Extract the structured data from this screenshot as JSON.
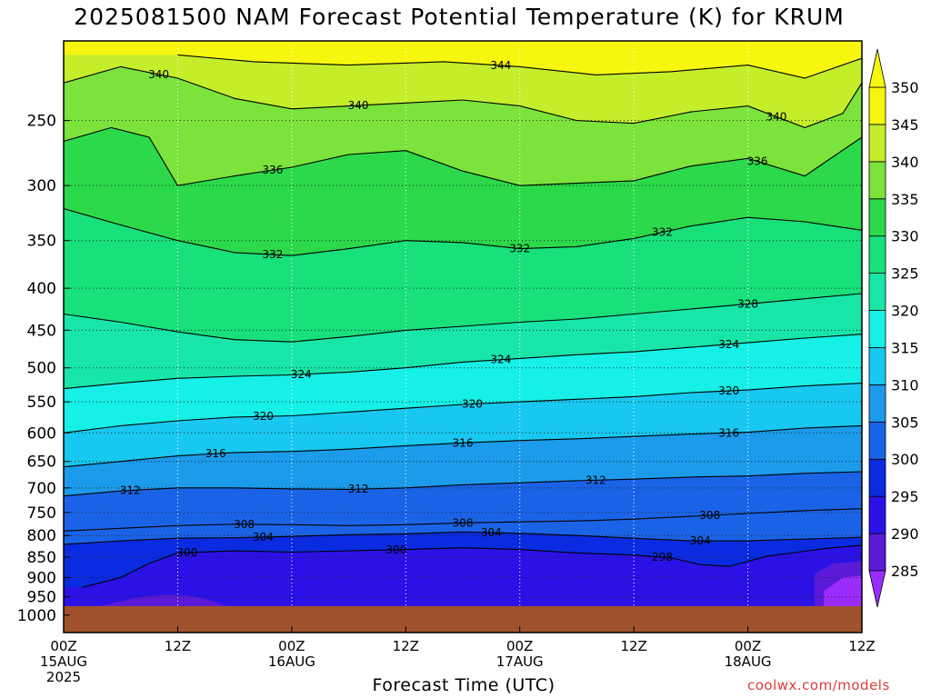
{
  "title": "2025081500 NAM Forecast Potential Temperature (K) for KRUM",
  "xlabel": "Forecast Time (UTC)",
  "credit": "coolwx.com/models",
  "colors": {
    "ground": "#a0522d",
    "bands": [
      "#9b2cff",
      "#5a1ad8",
      "#2a12e6",
      "#0a2be0",
      "#1a63e6",
      "#1b9bea",
      "#18c8f0",
      "#16f0e6",
      "#18e6a8",
      "#18e07a",
      "#2bd94a",
      "#7be33b",
      "#c4ee2a",
      "#f6f60e"
    ]
  },
  "chart_data": {
    "type": "heatmap",
    "title": "2025081500 NAM Forecast Potential Temperature (K) for KRUM",
    "xlabel": "Forecast Time (UTC)",
    "ylabel": "",
    "x_ticks": [
      {
        "hour": 0,
        "label": "00Z",
        "date": "15AUG",
        "year": "2025"
      },
      {
        "hour": 12,
        "label": "12Z"
      },
      {
        "hour": 24,
        "label": "00Z",
        "date": "16AUG"
      },
      {
        "hour": 36,
        "label": "12Z"
      },
      {
        "hour": 48,
        "label": "00Z",
        "date": "17AUG"
      },
      {
        "hour": 60,
        "label": "12Z"
      },
      {
        "hour": 72,
        "label": "00Z",
        "date": "18AUG"
      },
      {
        "hour": 84,
        "label": "12Z"
      }
    ],
    "xlim": [
      0,
      84
    ],
    "y_ticks": [
      250,
      300,
      350,
      400,
      450,
      500,
      550,
      600,
      650,
      700,
      750,
      800,
      850,
      900,
      950,
      1000
    ],
    "ylim": [
      1050,
      200
    ],
    "y_scale": "log-pressure",
    "colorbar_levels": [
      285,
      290,
      295,
      300,
      305,
      310,
      315,
      320,
      325,
      330,
      335,
      340,
      345,
      350
    ],
    "colorbar_range": [
      280,
      355
    ],
    "contour_interval": 4,
    "contour_labels": [
      "340",
      "344",
      "340",
      "340",
      "336",
      "336",
      "332",
      "332",
      "332",
      "328",
      "324",
      "324",
      "324",
      "320",
      "320",
      "320",
      "316",
      "316",
      "316",
      "312",
      "312",
      "312",
      "308",
      "308",
      "308",
      "304",
      "304",
      "304",
      "300",
      "300",
      "298"
    ],
    "ground_level_hpa": 975,
    "grid": true,
    "series": [
      {
        "name": "300",
        "points": [
          [
            2,
            925
          ],
          [
            6,
            900
          ],
          [
            9,
            865
          ],
          [
            12,
            840
          ],
          [
            18,
            835
          ],
          [
            24,
            838
          ],
          [
            30,
            835
          ],
          [
            36,
            832
          ],
          [
            42,
            828
          ],
          [
            48,
            832
          ],
          [
            54,
            840
          ],
          [
            60,
            845
          ],
          [
            64,
            852
          ],
          [
            67,
            868
          ],
          [
            70,
            872
          ],
          [
            74,
            848
          ],
          [
            80,
            830
          ],
          [
            84,
            822
          ]
        ]
      },
      {
        "name": "304",
        "points": [
          [
            0,
            820
          ],
          [
            6,
            812
          ],
          [
            12,
            806
          ],
          [
            18,
            805
          ],
          [
            24,
            802
          ],
          [
            30,
            798
          ],
          [
            36,
            796
          ],
          [
            42,
            792
          ],
          [
            48,
            795
          ],
          [
            54,
            800
          ],
          [
            60,
            806
          ],
          [
            66,
            812
          ],
          [
            72,
            812
          ],
          [
            78,
            808
          ],
          [
            84,
            804
          ]
        ]
      },
      {
        "name": "308",
        "points": [
          [
            0,
            790
          ],
          [
            6,
            784
          ],
          [
            12,
            778
          ],
          [
            18,
            775
          ],
          [
            24,
            776
          ],
          [
            30,
            778
          ],
          [
            36,
            776
          ],
          [
            42,
            772
          ],
          [
            48,
            770
          ],
          [
            54,
            768
          ],
          [
            60,
            764
          ],
          [
            66,
            758
          ],
          [
            72,
            752
          ],
          [
            78,
            746
          ],
          [
            84,
            742
          ]
        ]
      },
      {
        "name": "312",
        "points": [
          [
            0,
            716
          ],
          [
            6,
            706
          ],
          [
            12,
            700
          ],
          [
            18,
            700
          ],
          [
            24,
            702
          ],
          [
            30,
            703
          ],
          [
            36,
            700
          ],
          [
            42,
            694
          ],
          [
            48,
            690
          ],
          [
            54,
            686
          ],
          [
            60,
            683
          ],
          [
            66,
            679
          ],
          [
            72,
            677
          ],
          [
            78,
            672
          ],
          [
            84,
            669
          ]
        ]
      },
      {
        "name": "316",
        "points": [
          [
            0,
            660
          ],
          [
            6,
            650
          ],
          [
            12,
            640
          ],
          [
            18,
            634
          ],
          [
            24,
            632
          ],
          [
            30,
            628
          ],
          [
            36,
            622
          ],
          [
            42,
            617
          ],
          [
            48,
            613
          ],
          [
            54,
            610
          ],
          [
            60,
            606
          ],
          [
            66,
            602
          ],
          [
            72,
            599
          ],
          [
            78,
            592
          ],
          [
            84,
            588
          ]
        ]
      },
      {
        "name": "320",
        "points": [
          [
            0,
            600
          ],
          [
            6,
            588
          ],
          [
            12,
            580
          ],
          [
            18,
            574
          ],
          [
            24,
            572
          ],
          [
            30,
            566
          ],
          [
            36,
            560
          ],
          [
            42,
            554
          ],
          [
            48,
            550
          ],
          [
            54,
            546
          ],
          [
            60,
            542
          ],
          [
            66,
            536
          ],
          [
            72,
            532
          ],
          [
            78,
            526
          ],
          [
            84,
            522
          ]
        ]
      },
      {
        "name": "324",
        "points": [
          [
            0,
            530
          ],
          [
            6,
            522
          ],
          [
            12,
            515
          ],
          [
            18,
            512
          ],
          [
            24,
            510
          ],
          [
            30,
            506
          ],
          [
            36,
            500
          ],
          [
            42,
            492
          ],
          [
            48,
            487
          ],
          [
            54,
            482
          ],
          [
            60,
            478
          ],
          [
            66,
            472
          ],
          [
            72,
            466
          ],
          [
            78,
            460
          ],
          [
            84,
            455
          ]
        ]
      },
      {
        "name": "328",
        "points": [
          [
            0,
            430
          ],
          [
            6,
            440
          ],
          [
            12,
            452
          ],
          [
            18,
            462
          ],
          [
            24,
            465
          ],
          [
            30,
            458
          ],
          [
            36,
            450
          ],
          [
            42,
            445
          ],
          [
            48,
            440
          ],
          [
            54,
            436
          ],
          [
            60,
            430
          ],
          [
            66,
            424
          ],
          [
            72,
            418
          ],
          [
            78,
            412
          ],
          [
            84,
            406
          ]
        ]
      },
      {
        "name": "332",
        "points": [
          [
            0,
            320
          ],
          [
            6,
            335
          ],
          [
            12,
            350
          ],
          [
            18,
            362
          ],
          [
            24,
            365
          ],
          [
            30,
            358
          ],
          [
            36,
            350
          ],
          [
            42,
            352
          ],
          [
            48,
            358
          ],
          [
            54,
            356
          ],
          [
            60,
            348
          ],
          [
            66,
            336
          ],
          [
            72,
            328
          ],
          [
            78,
            332
          ],
          [
            84,
            340
          ]
        ]
      },
      {
        "name": "336",
        "points": [
          [
            0,
            265
          ],
          [
            5,
            255
          ],
          [
            9,
            262
          ],
          [
            12,
            300
          ],
          [
            18,
            292
          ],
          [
            24,
            285
          ],
          [
            30,
            275
          ],
          [
            36,
            272
          ],
          [
            42,
            288
          ],
          [
            48,
            300
          ],
          [
            54,
            298
          ],
          [
            60,
            296
          ],
          [
            66,
            284
          ],
          [
            72,
            278
          ],
          [
            78,
            292
          ],
          [
            84,
            262
          ]
        ]
      },
      {
        "name": "340",
        "points": [
          [
            0,
            225
          ],
          [
            6,
            215
          ],
          [
            12,
            222
          ],
          [
            18,
            235
          ],
          [
            24,
            242
          ],
          [
            30,
            240
          ],
          [
            36,
            238
          ],
          [
            42,
            236
          ],
          [
            48,
            240
          ],
          [
            54,
            250
          ],
          [
            60,
            252
          ],
          [
            66,
            244
          ],
          [
            72,
            240
          ],
          [
            78,
            255
          ],
          [
            82,
            245
          ],
          [
            84,
            225
          ]
        ]
      },
      {
        "name": "344",
        "points": [
          [
            12,
            208
          ],
          [
            20,
            212
          ],
          [
            30,
            214
          ],
          [
            40,
            212
          ],
          [
            48,
            215
          ],
          [
            56,
            220
          ],
          [
            64,
            218
          ],
          [
            72,
            214
          ],
          [
            78,
            222
          ],
          [
            84,
            210
          ]
        ]
      }
    ]
  }
}
